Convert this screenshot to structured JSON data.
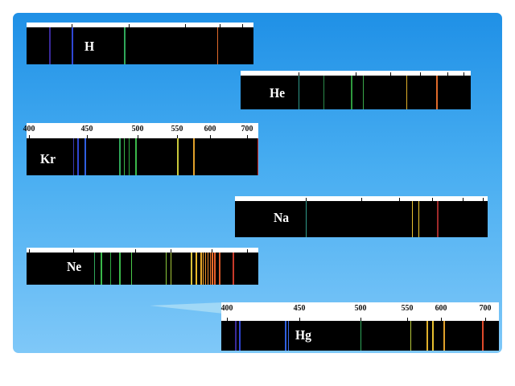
{
  "spectra": [
    {
      "id": "h",
      "element": "H",
      "scale_labels": [],
      "ticks": [
        0.2,
        0.45,
        0.7,
        0.85,
        0.95
      ],
      "lines": [
        {
          "x": 0.1,
          "c": "#3a2a9a"
        },
        {
          "x": 0.2,
          "c": "#2f46d4"
        },
        {
          "x": 0.43,
          "c": "#2fa85a"
        },
        {
          "x": 0.84,
          "c": "#e06a2a"
        }
      ]
    },
    {
      "id": "he",
      "element": "He",
      "scale_labels": [],
      "ticks": [
        0.25,
        0.5,
        0.65,
        0.78,
        0.9,
        0.97
      ],
      "lines": [
        {
          "x": 0.25,
          "c": "#2f9a8a"
        },
        {
          "x": 0.36,
          "c": "#2a8a4a"
        },
        {
          "x": 0.48,
          "c": "#2e9a3e"
        },
        {
          "x": 0.53,
          "c": "#3aa84a"
        },
        {
          "x": 0.72,
          "c": "#e0b02a"
        },
        {
          "x": 0.85,
          "c": "#e06a2a"
        }
      ]
    },
    {
      "id": "kr",
      "element": "Kr",
      "scale_labels": [
        "400",
        "450",
        "500",
        "550",
        "600",
        "700"
      ],
      "ticks": [
        0.01,
        0.26,
        0.48,
        0.65,
        0.79,
        0.95
      ],
      "lines": [
        {
          "x": 0.2,
          "c": "#3a3ab0"
        },
        {
          "x": 0.22,
          "c": "#2f46d4"
        },
        {
          "x": 0.25,
          "c": "#2f5fe0"
        },
        {
          "x": 0.4,
          "c": "#2fa85a"
        },
        {
          "x": 0.42,
          "c": "#3ab84a"
        },
        {
          "x": 0.44,
          "c": "#2fa840"
        },
        {
          "x": 0.47,
          "c": "#3ab84a"
        },
        {
          "x": 0.65,
          "c": "#c8c83a"
        },
        {
          "x": 0.72,
          "c": "#e0a02a"
        },
        {
          "x": 0.995,
          "c": "#c82a2a"
        }
      ]
    },
    {
      "id": "na",
      "element": "Na",
      "scale_labels": [],
      "ticks": [
        0.28,
        0.5,
        0.65,
        0.78,
        0.9,
        0.98
      ],
      "lines": [
        {
          "x": 0.28,
          "c": "#2f9a8a"
        },
        {
          "x": 0.7,
          "c": "#e8c030"
        },
        {
          "x": 0.725,
          "c": "#f0c830"
        },
        {
          "x": 0.8,
          "c": "#a02a2a"
        }
      ]
    },
    {
      "id": "ne",
      "element": "Ne",
      "scale_labels": [],
      "ticks": [
        0.01,
        0.2,
        0.47,
        0.62,
        0.8,
        0.95
      ],
      "lines": [
        {
          "x": 0.29,
          "c": "#2fa85a"
        },
        {
          "x": 0.32,
          "c": "#3ab84a"
        },
        {
          "x": 0.36,
          "c": "#2fa840"
        },
        {
          "x": 0.4,
          "c": "#3ab84a"
        },
        {
          "x": 0.45,
          "c": "#4ac84a"
        },
        {
          "x": 0.6,
          "c": "#8ac83a"
        },
        {
          "x": 0.62,
          "c": "#a8c83a"
        },
        {
          "x": 0.71,
          "c": "#d8c03a"
        },
        {
          "x": 0.73,
          "c": "#e8b82a"
        },
        {
          "x": 0.75,
          "c": "#e8a82a"
        },
        {
          "x": 0.76,
          "c": "#f0a02a"
        },
        {
          "x": 0.77,
          "c": "#e8902a"
        },
        {
          "x": 0.78,
          "c": "#f0882a"
        },
        {
          "x": 0.79,
          "c": "#e8782a"
        },
        {
          "x": 0.8,
          "c": "#e86a2a"
        },
        {
          "x": 0.81,
          "c": "#e8602a"
        },
        {
          "x": 0.83,
          "c": "#d85a2a"
        },
        {
          "x": 0.89,
          "c": "#c83a2a"
        }
      ]
    },
    {
      "id": "hg",
      "element": "Hg",
      "scale_labels": [
        "400",
        "450",
        "500",
        "550",
        "600",
        "700"
      ],
      "ticks": [
        0.02,
        0.28,
        0.5,
        0.67,
        0.79,
        0.95
      ],
      "lines": [
        {
          "x": 0.05,
          "c": "#3a2a9a"
        },
        {
          "x": 0.065,
          "c": "#2f46d4"
        },
        {
          "x": 0.23,
          "c": "#2f5fe0"
        },
        {
          "x": 0.24,
          "c": "#3a6ae8"
        },
        {
          "x": 0.5,
          "c": "#2fa85a"
        },
        {
          "x": 0.68,
          "c": "#b8c83a"
        },
        {
          "x": 0.74,
          "c": "#e0b02a"
        },
        {
          "x": 0.76,
          "c": "#e8c030"
        },
        {
          "x": 0.8,
          "c": "#e0a02a"
        },
        {
          "x": 0.94,
          "c": "#e04a2a"
        }
      ]
    }
  ]
}
